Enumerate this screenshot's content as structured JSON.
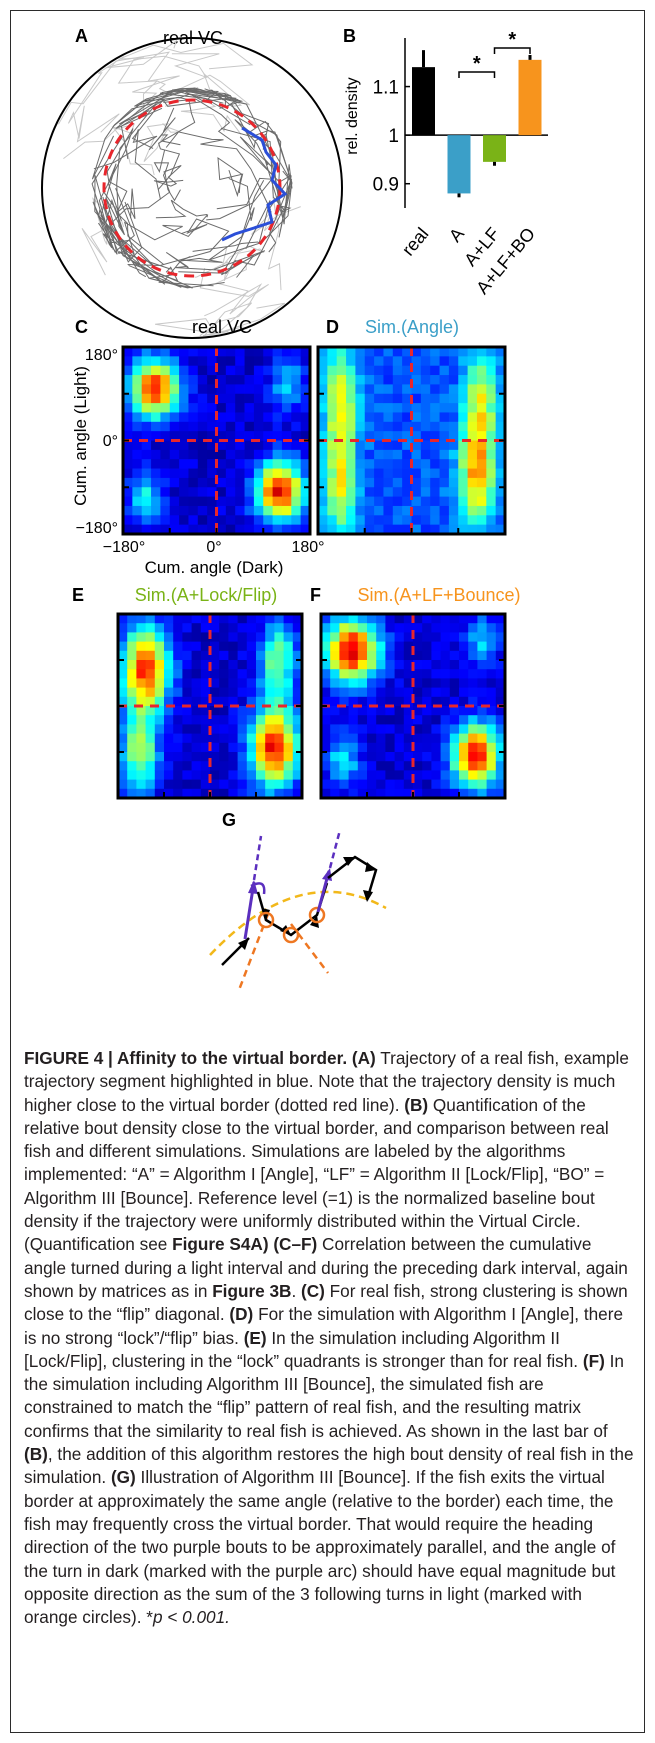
{
  "panels": {
    "A": {
      "letter": "A",
      "title": "real VC"
    },
    "B": {
      "letter": "B",
      "ylabel": "rel. density",
      "yticks": [
        "0.9",
        "1",
        "1.1"
      ],
      "sig_marker": "*"
    },
    "C": {
      "letter": "C",
      "title": "real VC",
      "ylabel": "Cum. angle (Light)",
      "xlabel": "Cum. angle (Dark)",
      "yticks": [
        "180°",
        "0°",
        "−180°"
      ],
      "xticks": [
        "−180°",
        "0°",
        "180°"
      ]
    },
    "D": {
      "letter": "D",
      "title": "Sim.(Angle)"
    },
    "E": {
      "letter": "E",
      "title": "Sim.(A+Lock/Flip)"
    },
    "F": {
      "letter": "F",
      "title": "Sim.(A+LF+Bounce)"
    },
    "G": {
      "letter": "G"
    }
  },
  "colors": {
    "real": "#000000",
    "angle": "#3b9fc8",
    "lockflip": "#7ab317",
    "bounce": "#f7941d",
    "border_dash": "#e8262c",
    "trajectory_highlight": "#2b4fd8",
    "arc_purple": "#5b2fbf",
    "circle_orange": "#ee7722",
    "border_yellow": "#f2b81a"
  },
  "chart_data": {
    "type": "bar",
    "categories": [
      "real",
      "A",
      "A+LF",
      "A+LF+BO"
    ],
    "values": [
      1.14,
      0.88,
      0.945,
      1.155
    ],
    "errors": [
      0.035,
      0.008,
      0.008,
      0.01
    ],
    "baseline": 1.0,
    "ylabel": "rel. density",
    "ylim": [
      0.85,
      1.2
    ],
    "significance": [
      {
        "between": [
          "A",
          "A+LF"
        ],
        "label": "*"
      },
      {
        "between": [
          "A+LF",
          "A+LF+BO"
        ],
        "label": "*"
      }
    ]
  },
  "caption": {
    "figure_label": "FIGURE 4 | Affinity to the virtual border.",
    "a_label": "(A)",
    "a_text": "Trajectory of a real fish, example trajectory segment highlighted in blue. Note that the trajectory density is much higher close to the virtual border (dotted red line).",
    "b_label": "(B)",
    "b_text": "Quantification of the relative bout density close to the virtual border, and comparison between real fish and different simulations. Simulations are labeled by the algorithms implemented: “A” = Algorithm I [Angle], “LF” = Algorithm II [Lock/Flip], “BO” = Algorithm III [Bounce]. Reference level (=1) is the normalized baseline bout density if the trajectory were uniformly distributed within the Virtual Circle. (Quantification see",
    "ref_s4a": "Figure S4A",
    "cf_label": ") (C–F)",
    "cf_text": "Correlation between the cumulative angle turned during a light interval and during the preceding dark interval, again shown by matrices as in",
    "ref_3b": "Figure 3B",
    "c_label": "(C)",
    "c_text": "For real fish, strong clustering is shown close to the “flip” diagonal.",
    "d_label": "(D)",
    "d_text": "For the simulation with Algorithm I [Angle], there is no strong “lock”/“flip” bias.",
    "e_label": "(E)",
    "e_text": "In the simulation including Algorithm II [Lock/Flip], clustering in the “lock” quadrants is stronger than for real fish.",
    "f_label": "(F)",
    "f_text": "In the simulation including Algorithm III [Bounce], the simulated fish are constrained to match the “flip” pattern of real fish, and the resulting matrix confirms that the similarity to real fish is achieved. As shown in the last bar of",
    "b_ref": "(B)",
    "f_text2": ", the addition of this algorithm restores the high bout density of real fish in the simulation.",
    "g_label": "(G)",
    "g_text": "Illustration of Algorithm III [Bounce]. If the fish exits the virtual border at approximately the same angle (relative to the border) each time, the fish may frequently cross the virtual border. That would require the heading direction of the two purple bouts to be approximately parallel, and the angle of the turn in dark (marked with the purple arc) should have equal magnitude but opposite direction as the sum of the 3 following turns in light (marked with orange circles). *",
    "p_text": "p < 0.001."
  }
}
